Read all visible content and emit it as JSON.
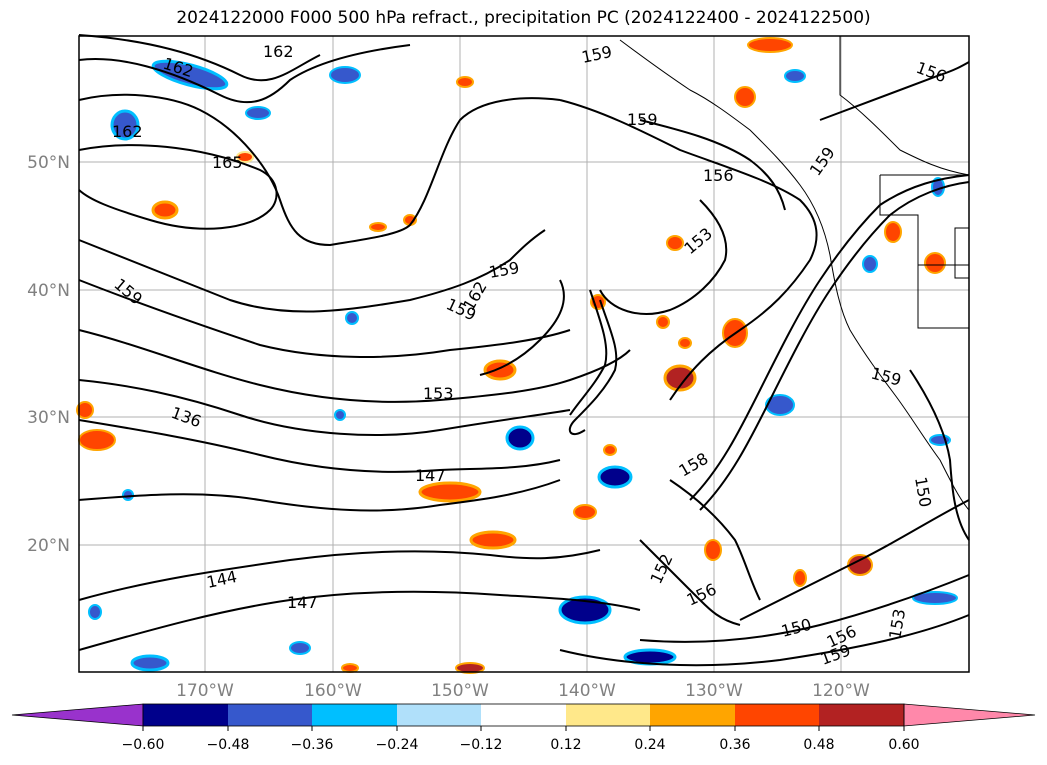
{
  "title": "2024122000 F000 500 hPa refract., precipitation PC (2024122400 - 2024122500)",
  "map": {
    "lat_labels": [
      "50°N",
      "40°N",
      "30°N",
      "20°N"
    ],
    "lon_labels": [
      "170°W",
      "160°W",
      "150°W",
      "140°W",
      "130°W",
      "120°W"
    ],
    "contour_labels": [
      "162",
      "162",
      "162",
      "165",
      "159",
      "159",
      "159",
      "162",
      "159",
      "156",
      "159",
      "153",
      "159",
      "136",
      "153",
      "147",
      "144",
      "147",
      "158",
      "152",
      "156",
      "150",
      "156",
      "159",
      "159",
      "150",
      "156",
      "153"
    ],
    "colors": {
      "grid": "#b0b0b0",
      "contour": "#000000",
      "coast": "#000000"
    }
  },
  "colorbar": {
    "ticks": [
      "−0.60",
      "−0.48",
      "−0.36",
      "−0.24",
      "−0.12",
      "0.12",
      "0.24",
      "0.36",
      "0.48",
      "0.60"
    ],
    "colors": [
      "#9932cc",
      "#00008b",
      "#3658cc",
      "#00bfff",
      "#b0e0fa",
      "#ffffff",
      "#ffe88a",
      "#ffa500",
      "#ff4500",
      "#b22222",
      "#ff88aa"
    ]
  }
}
